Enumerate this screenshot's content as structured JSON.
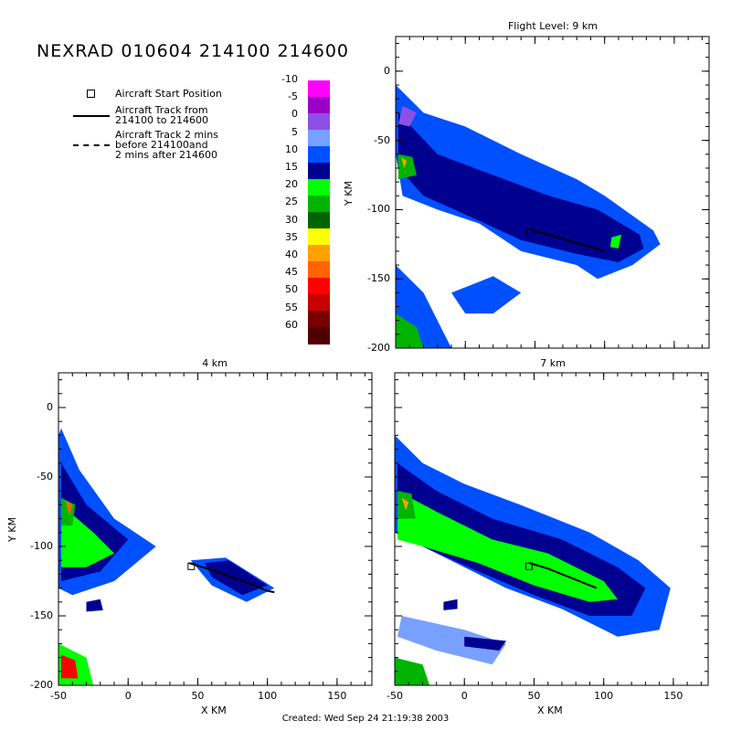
{
  "title": "NEXRAD 010604 214100 214600",
  "legend": {
    "start_position": "Aircraft Start Position",
    "track_line1": "Aircraft Track from",
    "track_line2": "214100 to 214600",
    "track2_line1": "Aircraft Track 2 mins",
    "track2_line2": "before 214100and",
    "track2_line3": "2 mins after 214600"
  },
  "colorbar": {
    "labels": [
      "-10",
      "-5",
      "0",
      "5",
      "10",
      "15",
      "20",
      "25",
      "30",
      "35",
      "40",
      "45",
      "50",
      "55",
      "60"
    ],
    "colors": [
      "#ff00ff",
      "#9a00c8",
      "#8c50e6",
      "#78a0ff",
      "#0050ff",
      "#000090",
      "#00ff00",
      "#00b400",
      "#006400",
      "#ffff00",
      "#ffa000",
      "#ff6400",
      "#ff0000",
      "#c80000",
      "#780000",
      "#500000"
    ]
  },
  "panels": [
    {
      "id": "p9",
      "title": "Flight Level: 9 km",
      "ylabel": "Y KM",
      "xlabel": "",
      "yticks": [
        "0",
        "-50",
        "-100",
        "-150",
        "-200"
      ],
      "xticks": []
    },
    {
      "id": "p4",
      "title": "4 km",
      "ylabel": "Y KM",
      "xlabel": "X KM",
      "yticks": [
        "0",
        "-50",
        "-100",
        "-150",
        "-200"
      ],
      "xticks": [
        "-50",
        "0",
        "50",
        "100",
        "150"
      ]
    },
    {
      "id": "p7",
      "title": "7 km",
      "ylabel": "",
      "xlabel": "X KM",
      "yticks": [],
      "xticks": [
        "-50",
        "0",
        "50",
        "100",
        "150"
      ]
    }
  ],
  "footer": "Created: Wed Sep 24 21:19:38 2003"
}
